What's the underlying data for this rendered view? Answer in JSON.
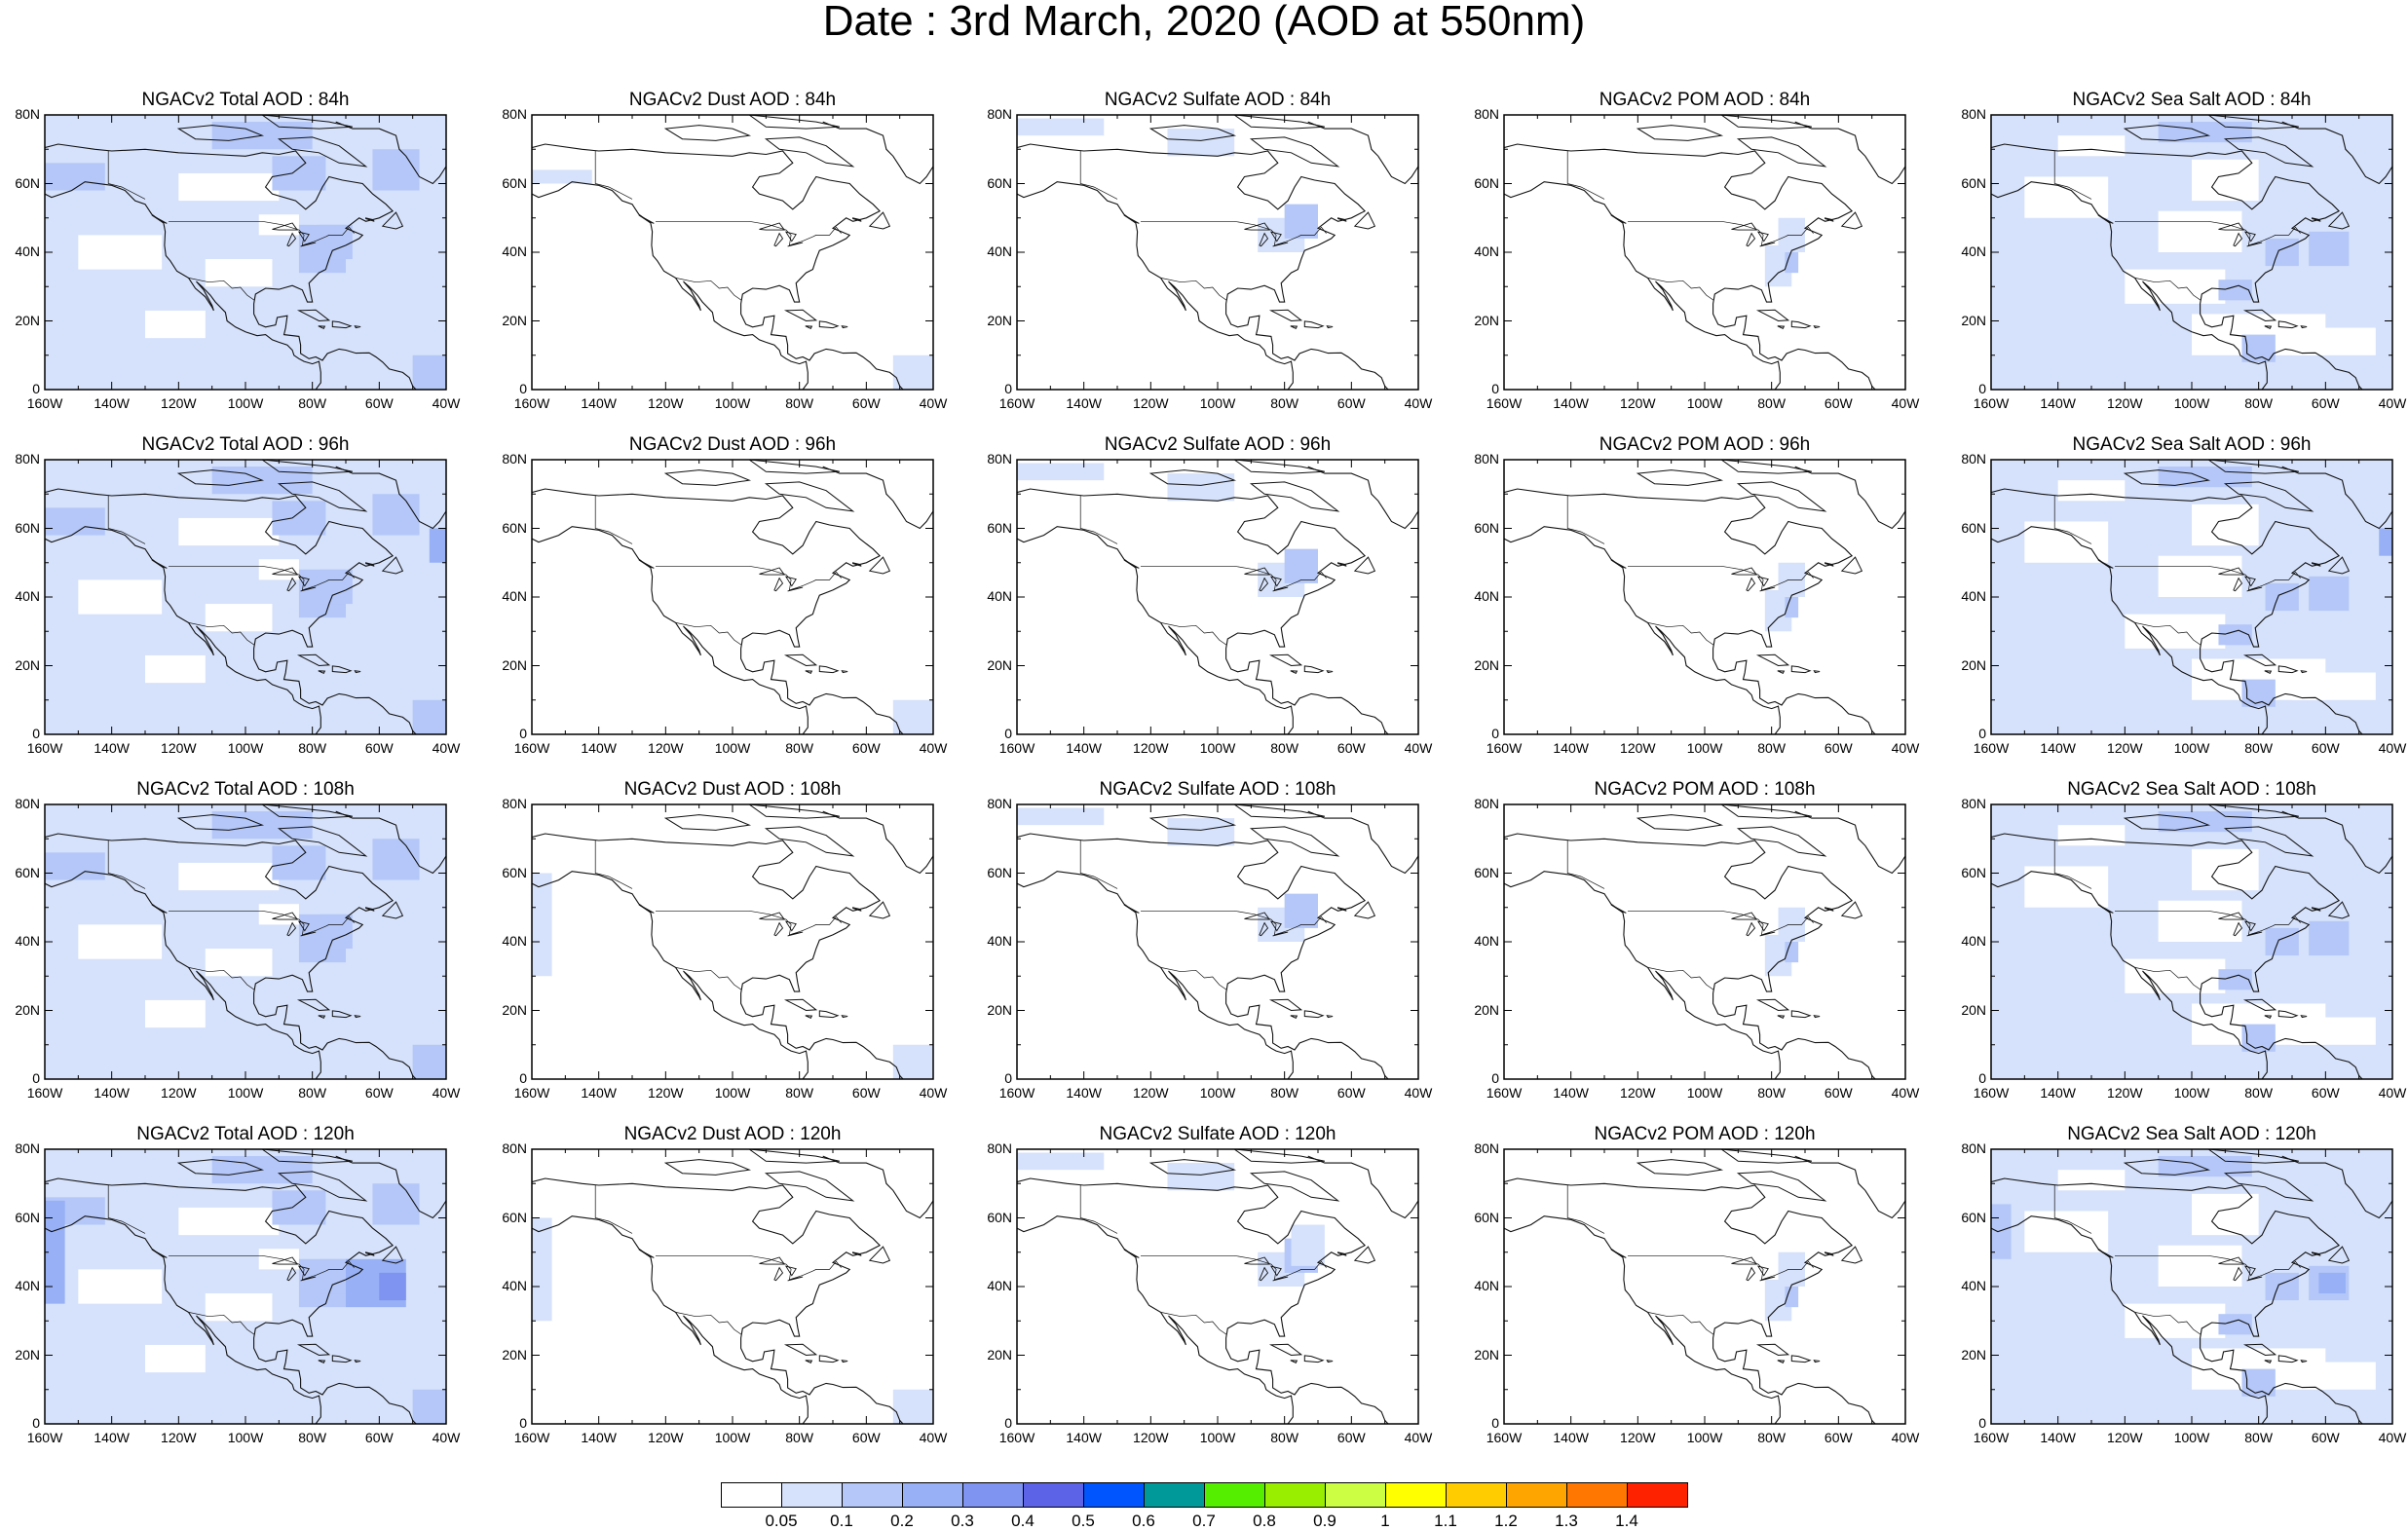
{
  "title": "Date : 3rd March, 2020 (AOD at 550nm)",
  "lat_labels": [
    "80N",
    "60N",
    "40N",
    "20N",
    "0"
  ],
  "lon_labels": [
    "160W",
    "140W",
    "120W",
    "100W",
    "80W",
    "60W",
    "40W"
  ],
  "panels": [
    [
      "NGACv2 Total AOD : 84h",
      "NGACv2 Dust AOD : 84h",
      "NGACv2 Sulfate AOD : 84h",
      "NGACv2 POM AOD : 84h",
      "NGACv2 Sea Salt AOD : 84h"
    ],
    [
      "NGACv2 Total AOD : 96h",
      "NGACv2 Dust AOD : 96h",
      "NGACv2 Sulfate AOD : 96h",
      "NGACv2 POM AOD : 96h",
      "NGACv2 Sea Salt AOD : 96h"
    ],
    [
      "NGACv2 Total AOD : 108h",
      "NGACv2 Dust AOD : 108h",
      "NGACv2 Sulfate AOD : 108h",
      "NGACv2 POM AOD : 108h",
      "NGACv2 Sea Salt AOD : 108h"
    ],
    [
      "NGACv2 Total AOD : 120h",
      "NGACv2 Dust AOD : 120h",
      "NGACv2 Sulfate AOD : 120h",
      "NGACv2 POM AOD : 120h",
      "NGACv2 Sea Salt  AOD : 120h"
    ]
  ],
  "colorbar": {
    "labels": [
      "0.05",
      "0.1",
      "0.2",
      "0.3",
      "0.4",
      "0.5",
      "0.6",
      "0.7",
      "0.8",
      "0.9",
      "1",
      "1.1",
      "1.2",
      "1.3",
      "1.4"
    ],
    "colors": [
      "#ffffff",
      "#d6e2fb",
      "#b4c7f8",
      "#97b0f6",
      "#7f93f0",
      "#5c63e6",
      "#0055ff",
      "#009999",
      "#55ee00",
      "#99ee00",
      "#ccff44",
      "#ffff00",
      "#ffcc00",
      "#ffa500",
      "#ff7700",
      "#ff2200"
    ]
  }
}
